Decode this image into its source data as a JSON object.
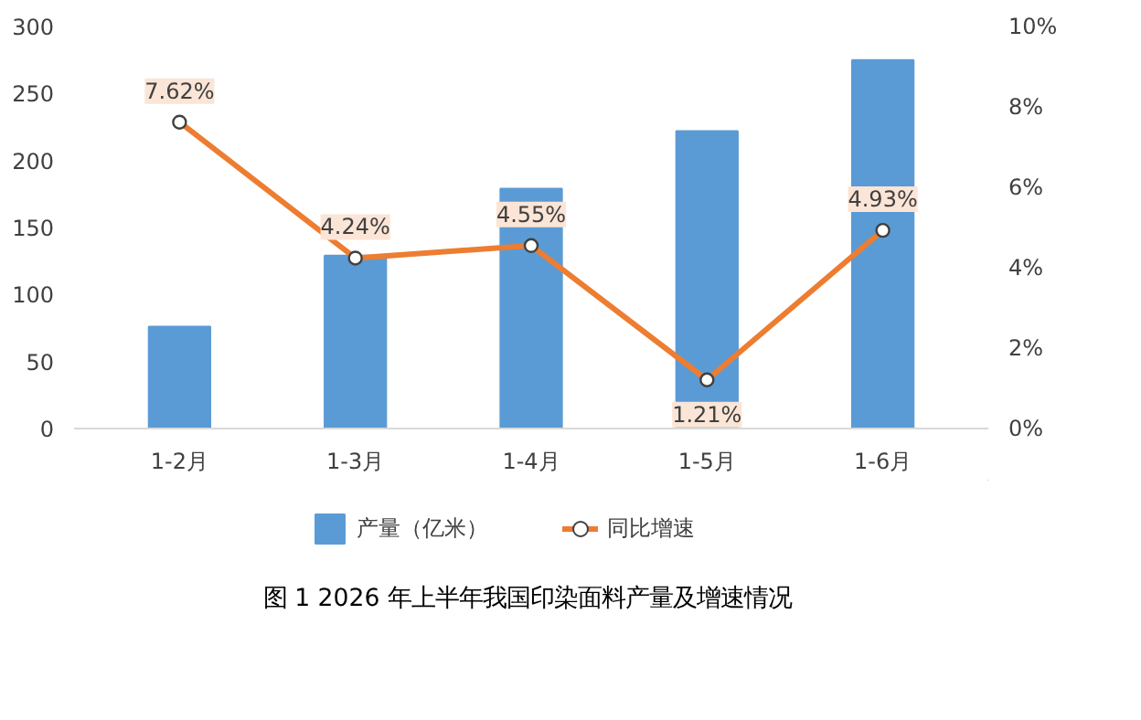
{
  "chart_data": {
    "type": "bar",
    "title": "图 1  2026 年上半年我国印染面料产量及增速情况",
    "categories": [
      "1-2月",
      "1-3月",
      "1-4月",
      "1-5月",
      "1-6月"
    ],
    "series": [
      {
        "name": "产量（亿米）",
        "color": "#5b9bd5",
        "values": [
          76,
          129,
          179,
          222,
          275
        ]
      },
      {
        "name": "同比增速",
        "type": "line",
        "axis": "y2",
        "color": "#ed7d31",
        "marker": "circle",
        "values": [
          7.62,
          4.24,
          4.55,
          1.21,
          4.93
        ],
        "data_labels": true,
        "value_labels": [
          "7.62%",
          "4.24%",
          "4.55%",
          "1.21%",
          "4.93%"
        ]
      }
    ],
    "ylim": [
      0,
      300
    ],
    "yticks": [
      0,
      50,
      100,
      150,
      200,
      250,
      300
    ],
    "y2lim": [
      0,
      10
    ],
    "y2ticks": [
      {
        "value": 0,
        "label": "0%"
      },
      {
        "value": 2,
        "label": "2%"
      },
      {
        "value": 4,
        "label": "4%"
      },
      {
        "value": 6,
        "label": "6%"
      },
      {
        "value": 8,
        "label": "8%"
      },
      {
        "value": 10,
        "label": "10%"
      }
    ],
    "grid": false,
    "legend": "bottom"
  }
}
